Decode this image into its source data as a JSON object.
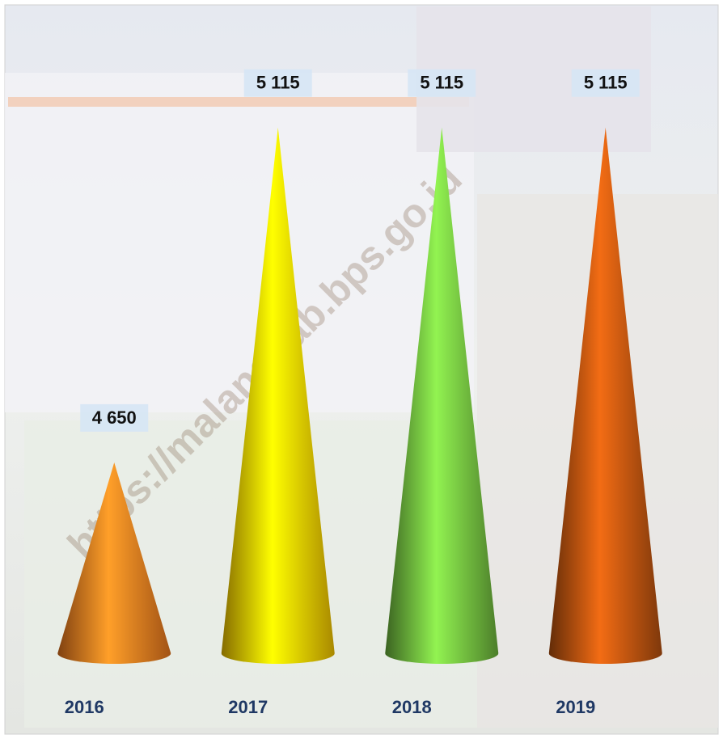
{
  "chart_data": {
    "type": "cone",
    "watermark": "https://malangkab.bps.go.id",
    "categories": [
      "2016",
      "2017",
      "2018",
      "2019"
    ],
    "values": [
      4650,
      5115,
      5115,
      5115
    ],
    "value_labels": [
      "4 650",
      "5 115",
      "5 115",
      "5 115"
    ],
    "colors": [
      "#e8761e",
      "#f2c200",
      "#6cb43c",
      "#b4500f"
    ],
    "ylim": [
      4385,
      5200
    ]
  }
}
